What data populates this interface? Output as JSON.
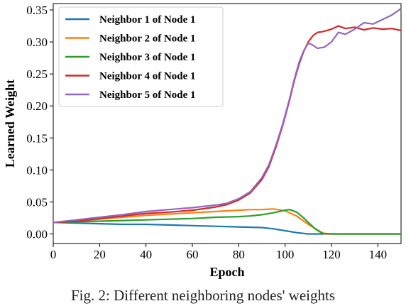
{
  "caption": "Fig. 2: Different neighboring nodes' weights",
  "chart_data": {
    "type": "line",
    "xlabel": "Epoch",
    "ylabel": "Learned Weight",
    "xlim": [
      0,
      150
    ],
    "ylim": [
      -0.015,
      0.36
    ],
    "xticks": [
      0,
      20,
      40,
      60,
      80,
      100,
      120,
      140
    ],
    "yticks": [
      0.0,
      0.05,
      0.1,
      0.15,
      0.2,
      0.25,
      0.3,
      0.35
    ],
    "ytick_labels": [
      "0.00",
      "0.05",
      "0.10",
      "0.15",
      "0.20",
      "0.25",
      "0.30",
      "0.35"
    ],
    "grid": false,
    "legend_position": "top-left",
    "series": [
      {
        "name": "Neighbor 1 of Node 1",
        "color": "#1f77b4",
        "x": [
          0,
          10,
          20,
          30,
          40,
          50,
          60,
          70,
          80,
          90,
          95,
          100,
          105,
          110,
          115,
          120,
          130,
          140,
          150
        ],
        "y": [
          0.018,
          0.017,
          0.016,
          0.015,
          0.015,
          0.014,
          0.013,
          0.012,
          0.011,
          0.01,
          0.008,
          0.005,
          0.002,
          0.0,
          0.0,
          0.0,
          0.0,
          0.0,
          0.0
        ]
      },
      {
        "name": "Neighbor 2 of Node 1",
        "color": "#ff7f0e",
        "x": [
          0,
          10,
          20,
          30,
          40,
          50,
          60,
          70,
          80,
          85,
          90,
          95,
          100,
          105,
          110,
          115,
          117,
          120,
          130,
          140,
          150
        ],
        "y": [
          0.018,
          0.02,
          0.023,
          0.026,
          0.029,
          0.031,
          0.033,
          0.035,
          0.037,
          0.038,
          0.038,
          0.039,
          0.036,
          0.028,
          0.015,
          0.004,
          0.0,
          0.0,
          0.0,
          0.0,
          0.0
        ]
      },
      {
        "name": "Neighbor 3 of Node 1",
        "color": "#2ca02c",
        "x": [
          0,
          10,
          20,
          30,
          40,
          50,
          60,
          70,
          80,
          85,
          90,
          95,
          100,
          102,
          105,
          108,
          110,
          113,
          116,
          120,
          130,
          140,
          150
        ],
        "y": [
          0.018,
          0.019,
          0.02,
          0.021,
          0.022,
          0.023,
          0.024,
          0.026,
          0.027,
          0.028,
          0.03,
          0.033,
          0.037,
          0.038,
          0.034,
          0.025,
          0.018,
          0.008,
          0.001,
          0.0,
          0.0,
          0.0,
          0.0
        ]
      },
      {
        "name": "Neighbor 4 of Node 1",
        "color": "#d62728",
        "x": [
          0,
          10,
          20,
          30,
          40,
          50,
          60,
          70,
          75,
          80,
          85,
          90,
          93,
          96,
          99,
          102,
          104,
          106,
          108,
          110,
          112,
          114,
          116,
          118,
          120,
          123,
          126,
          130,
          134,
          138,
          142,
          146,
          150
        ],
        "y": [
          0.018,
          0.02,
          0.024,
          0.028,
          0.032,
          0.034,
          0.037,
          0.042,
          0.046,
          0.053,
          0.064,
          0.085,
          0.105,
          0.135,
          0.17,
          0.21,
          0.24,
          0.265,
          0.285,
          0.3,
          0.31,
          0.315,
          0.316,
          0.318,
          0.32,
          0.325,
          0.321,
          0.323,
          0.319,
          0.322,
          0.32,
          0.321,
          0.318
        ]
      },
      {
        "name": "Neighbor 5 of Node 1",
        "color": "#9467bd",
        "x": [
          0,
          10,
          20,
          30,
          40,
          50,
          60,
          70,
          75,
          80,
          85,
          90,
          93,
          96,
          99,
          102,
          104,
          106,
          108,
          110,
          112,
          114,
          117,
          120,
          123,
          126,
          130,
          134,
          138,
          142,
          146,
          150
        ],
        "y": [
          0.018,
          0.022,
          0.026,
          0.03,
          0.035,
          0.038,
          0.041,
          0.045,
          0.048,
          0.055,
          0.066,
          0.088,
          0.108,
          0.138,
          0.172,
          0.212,
          0.242,
          0.268,
          0.286,
          0.298,
          0.295,
          0.29,
          0.292,
          0.3,
          0.315,
          0.312,
          0.32,
          0.33,
          0.328,
          0.335,
          0.342,
          0.352
        ]
      }
    ]
  }
}
